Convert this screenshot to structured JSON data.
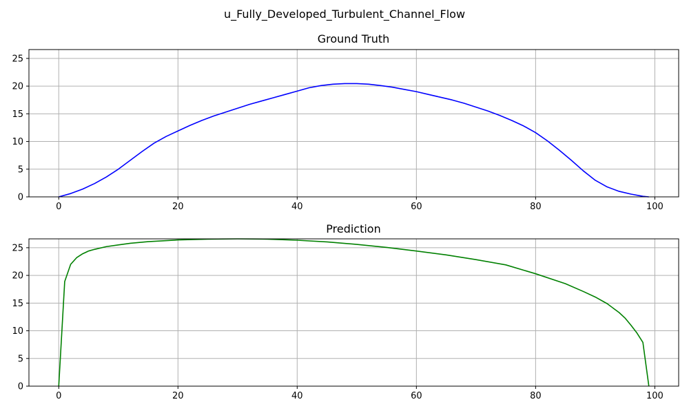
{
  "figure": {
    "suptitle": "u_Fully_Developed_Turbulent_Channel_Flow"
  },
  "chart_data": [
    {
      "type": "line",
      "title": "Ground Truth",
      "xlabel": "",
      "ylabel": "",
      "xlim": [
        -5,
        104
      ],
      "ylim": [
        0,
        26.6
      ],
      "xticks": [
        0,
        20,
        40,
        60,
        80,
        100
      ],
      "yticks": [
        0,
        5,
        10,
        15,
        20,
        25
      ],
      "grid": true,
      "series": [
        {
          "color": "#0000ff",
          "x": [
            0,
            2,
            4,
            6,
            8,
            10,
            12,
            14,
            16,
            18,
            20,
            22,
            24,
            26,
            28,
            30,
            32,
            34,
            36,
            38,
            40,
            42,
            44,
            46,
            48,
            50,
            52,
            54,
            56,
            58,
            60,
            62,
            64,
            66,
            68,
            70,
            72,
            74,
            76,
            78,
            80,
            82,
            84,
            86,
            88,
            90,
            92,
            94,
            96,
            98,
            99
          ],
          "y": [
            0,
            0.6,
            1.4,
            2.4,
            3.6,
            5.0,
            6.6,
            8.2,
            9.7,
            10.9,
            11.9,
            12.9,
            13.8,
            14.6,
            15.3,
            16.0,
            16.7,
            17.3,
            17.9,
            18.5,
            19.1,
            19.7,
            20.1,
            20.35,
            20.45,
            20.45,
            20.35,
            20.1,
            19.8,
            19.4,
            19.0,
            18.5,
            18.0,
            17.5,
            16.9,
            16.2,
            15.5,
            14.7,
            13.8,
            12.8,
            11.6,
            10.1,
            8.4,
            6.6,
            4.7,
            3.0,
            1.8,
            1.0,
            0.5,
            0.1,
            0
          ]
        }
      ]
    },
    {
      "type": "line",
      "title": "Prediction",
      "xlabel": "",
      "ylabel": "",
      "xlim": [
        -5,
        104
      ],
      "ylim": [
        0,
        26.6
      ],
      "xticks": [
        0,
        20,
        40,
        60,
        80,
        100
      ],
      "yticks": [
        0,
        5,
        10,
        15,
        20,
        25
      ],
      "grid": true,
      "series": [
        {
          "color": "#008000",
          "x": [
            0,
            1,
            2,
            3,
            4,
            5,
            6,
            8,
            10,
            12,
            15,
            20,
            25,
            30,
            35,
            40,
            45,
            50,
            55,
            60,
            65,
            70,
            75,
            80,
            85,
            88,
            90,
            92,
            94,
            95,
            96,
            97,
            98,
            99
          ],
          "y": [
            0,
            18.9,
            22.0,
            23.2,
            23.9,
            24.4,
            24.7,
            25.2,
            25.5,
            25.8,
            26.1,
            26.4,
            26.55,
            26.6,
            26.55,
            26.35,
            26.05,
            25.6,
            25.05,
            24.4,
            23.7,
            22.85,
            21.9,
            20.3,
            18.5,
            17.1,
            16.1,
            14.9,
            13.3,
            12.3,
            11.0,
            9.6,
            7.9,
            0
          ]
        }
      ]
    }
  ]
}
